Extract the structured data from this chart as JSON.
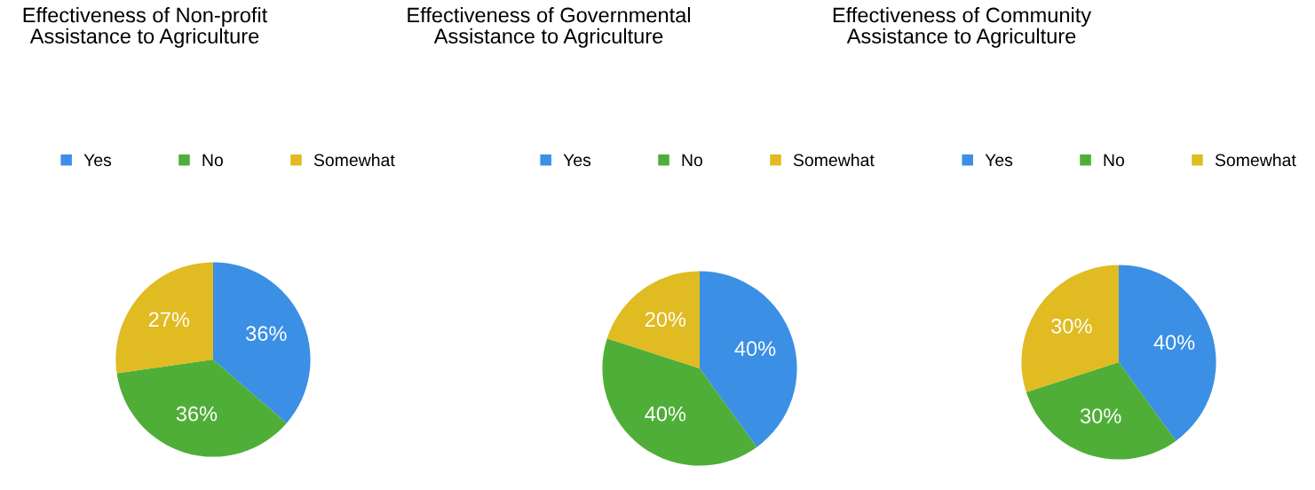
{
  "chart_data": [
    {
      "type": "pie",
      "title": "Effectiveness of Non-profit Assistance to Agriculture",
      "categories": [
        "Yes",
        "No",
        "Somewhat"
      ],
      "values": [
        36,
        36,
        27
      ],
      "value_labels": [
        "36%",
        "36%",
        "27%"
      ],
      "colors": [
        "#3b8fe4",
        "#4fae38",
        "#e0bb22"
      ],
      "legend": "top"
    },
    {
      "type": "pie",
      "title": "Effectiveness of Governmental Assistance to Agriculture",
      "categories": [
        "Yes",
        "No",
        "Somewhat"
      ],
      "values": [
        40,
        40,
        20
      ],
      "value_labels": [
        "40%",
        "40%",
        "20%"
      ],
      "colors": [
        "#3b8fe4",
        "#4fae38",
        "#e0bb22"
      ],
      "legend": "top"
    },
    {
      "type": "pie",
      "title": "Effectiveness of Community Assistance to Agriculture",
      "categories": [
        "Yes",
        "No",
        "Somewhat"
      ],
      "values": [
        40,
        30,
        30
      ],
      "value_labels": [
        "40%",
        "30%",
        "30%"
      ],
      "colors": [
        "#3b8fe4",
        "#4fae38",
        "#e0bb22"
      ],
      "legend": "top"
    }
  ]
}
